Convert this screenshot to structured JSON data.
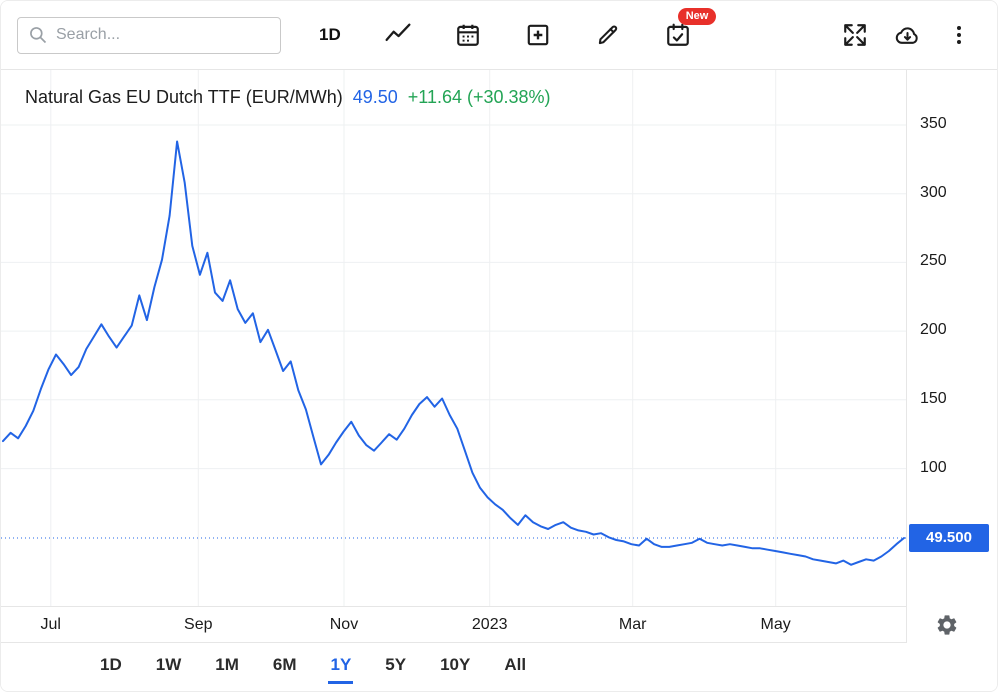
{
  "toolbar": {
    "search_placeholder": "Search...",
    "interval_label": "1D",
    "new_badge": "New"
  },
  "header": {
    "title": "Natural Gas EU Dutch TTF (EUR/MWh)",
    "price": "49.50",
    "change": "+11.64 (+30.38%)"
  },
  "y_axis": {
    "current_price_label": "49.500"
  },
  "ranges": {
    "items": [
      {
        "label": "1D",
        "active": false
      },
      {
        "label": "1W",
        "active": false
      },
      {
        "label": "1M",
        "active": false
      },
      {
        "label": "6M",
        "active": false
      },
      {
        "label": "1Y",
        "active": true
      },
      {
        "label": "5Y",
        "active": false
      },
      {
        "label": "10Y",
        "active": false
      },
      {
        "label": "All",
        "active": false
      }
    ]
  },
  "colors": {
    "line": "#2264e5",
    "up_green": "#23a455",
    "badge_red": "#e8302a",
    "axis_text": "#1b1b1b",
    "grid": "#eef0f2",
    "price_tag_bg": "#2264e5"
  },
  "chart_data": {
    "type": "line",
    "title": "Natural Gas EU Dutch TTF (EUR/MWh)",
    "unit": "EUR/MWh",
    "last": 49.5,
    "change_abs": 11.64,
    "change_pct": 30.38,
    "range_selected": "1Y",
    "legend_position": "top-left",
    "grid": true,
    "ylim": [
      0,
      390
    ],
    "yticks": [
      100,
      150,
      200,
      250,
      300,
      350
    ],
    "xticks": [
      {
        "label": "Jul",
        "pos": 0.055
      },
      {
        "label": "Sep",
        "pos": 0.218
      },
      {
        "label": "Nov",
        "pos": 0.379
      },
      {
        "label": "2023",
        "pos": 0.54
      },
      {
        "label": "Mar",
        "pos": 0.698
      },
      {
        "label": "May",
        "pos": 0.856
      }
    ],
    "values": [
      120,
      126,
      122,
      131,
      142,
      158,
      172,
      183,
      176,
      168,
      174,
      187,
      196,
      205,
      196,
      188,
      196,
      204,
      226,
      208,
      232,
      252,
      284,
      338,
      308,
      262,
      241,
      257,
      228,
      222,
      237,
      216,
      206,
      213,
      192,
      201,
      186,
      171,
      178,
      157,
      143,
      123,
      103,
      110,
      119,
      127,
      134,
      124,
      117,
      113,
      119,
      125,
      121,
      129,
      139,
      147,
      152,
      145,
      151,
      139,
      129,
      113,
      97,
      86,
      79,
      74,
      70,
      64,
      59,
      66,
      61,
      58,
      56,
      59,
      61,
      57,
      55,
      54,
      52,
      53,
      50,
      48,
      47,
      45,
      44,
      49,
      45,
      43,
      43,
      44,
      45,
      46,
      49,
      46,
      45,
      44,
      45,
      44,
      43,
      42,
      42,
      41,
      40,
      39,
      38,
      37,
      36,
      34,
      33,
      32,
      31,
      33,
      30,
      32,
      34,
      33,
      36,
      40,
      45,
      49.5
    ]
  }
}
